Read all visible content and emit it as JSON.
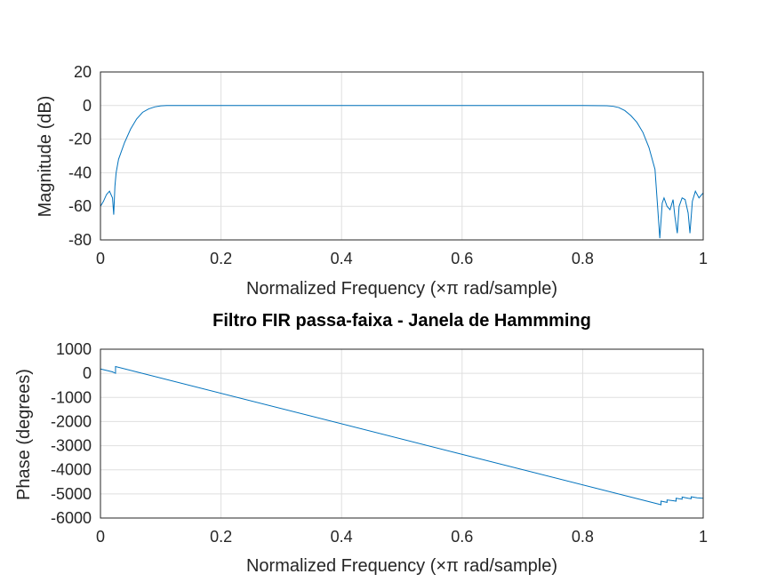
{
  "chart_data": [
    {
      "type": "line",
      "title": "",
      "xlabel": "Normalized Frequency (×π rad/sample)",
      "ylabel": "Magnitude (dB)",
      "xlim": [
        0,
        1
      ],
      "ylim": [
        -80,
        20
      ],
      "xticks": [
        "0",
        "0.2",
        "0.4",
        "0.6",
        "0.8",
        "1"
      ],
      "yticks": [
        "20",
        "0",
        "-20",
        "-40",
        "-60",
        "-80"
      ],
      "grid": true,
      "color": "#0072bd",
      "series": [
        {
          "x": [
            0,
            0.005,
            0.01,
            0.015,
            0.02,
            0.022,
            0.024,
            0.026,
            0.03,
            0.04,
            0.05,
            0.06,
            0.07,
            0.08,
            0.09,
            0.1,
            0.11,
            0.12,
            0.2,
            0.4,
            0.6,
            0.8,
            0.84,
            0.85,
            0.86,
            0.87,
            0.88,
            0.89,
            0.9,
            0.91,
            0.92,
            0.928,
            0.932,
            0.935,
            0.94,
            0.945,
            0.95,
            0.953,
            0.957,
            0.96,
            0.965,
            0.97,
            0.975,
            0.978,
            0.982,
            0.987,
            0.993,
            1.0
          ],
          "y": [
            -60,
            -57,
            -53,
            -51,
            -55,
            -65,
            -48,
            -40,
            -32,
            -22,
            -14,
            -8,
            -4,
            -2,
            -0.8,
            -0.2,
            0,
            0,
            0,
            0,
            0,
            0,
            -0.1,
            -0.4,
            -1.2,
            -3,
            -6,
            -10,
            -16,
            -25,
            -38,
            -79,
            -58,
            -55,
            -60,
            -62,
            -56,
            -66,
            -76,
            -60,
            -55,
            -56,
            -64,
            -76,
            -57,
            -51,
            -55,
            -52
          ]
        }
      ]
    },
    {
      "type": "line",
      "title": "Filtro FIR passa-faixa - Janela de Hammming",
      "xlabel": "Normalized Frequency (×π rad/sample)",
      "ylabel": "Phase (degrees)",
      "xlim": [
        0,
        1
      ],
      "ylim": [
        -6000,
        1000
      ],
      "xticks": [
        "0",
        "0.2",
        "0.4",
        "0.6",
        "0.8",
        "1"
      ],
      "yticks": [
        "1000",
        "0",
        "-1000",
        "-2000",
        "-3000",
        "-4000",
        "-5000",
        "-6000"
      ],
      "grid": true,
      "color": "#0072bd",
      "series": [
        {
          "x": [
            0,
            0.02,
            0.02,
            0.025,
            0.025,
            0.927,
            0.93,
            0.93,
            0.94,
            0.94,
            0.95,
            0.955,
            0.955,
            0.965,
            0.965,
            0.975,
            0.98,
            0.98,
            0.99,
            1.0
          ],
          "y": [
            180,
            60,
            60,
            0,
            280,
            -5430,
            -5450,
            -5300,
            -5350,
            -5250,
            -5280,
            -5300,
            -5180,
            -5220,
            -5130,
            -5180,
            -5200,
            -5120,
            -5160,
            -5180
          ]
        }
      ]
    }
  ]
}
